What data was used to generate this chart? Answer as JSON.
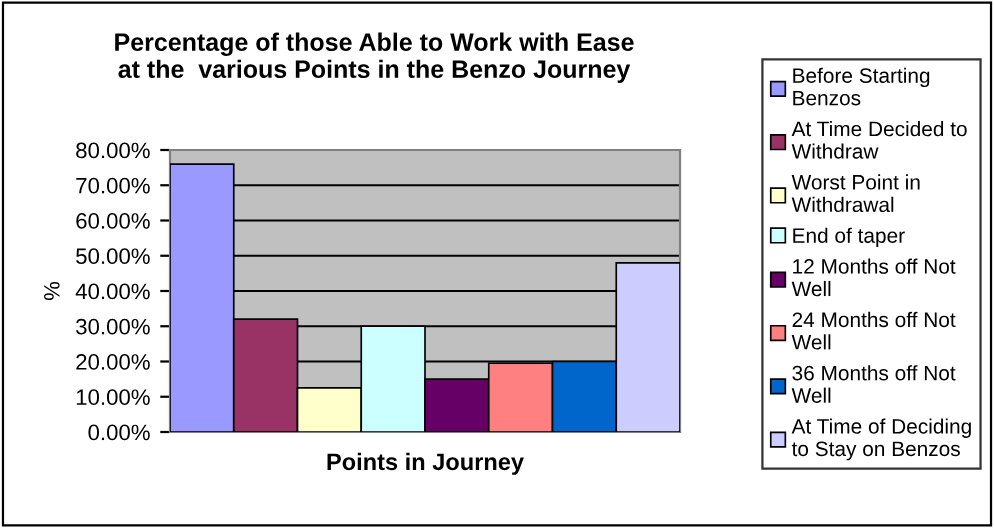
{
  "chart_data": {
    "type": "bar",
    "title": "Percentage of those Able to Work with Ease\nat the  various Points in the Benzo Journey",
    "xlabel": "Points in Journey",
    "ylabel": "%",
    "categories": [
      null
    ],
    "series": [
      {
        "name": "Before Starting Benzos",
        "color": "#9999ff",
        "values": [
          76
        ]
      },
      {
        "name": "At Time Decided to Withdraw",
        "color": "#993366",
        "values": [
          32
        ]
      },
      {
        "name": "Worst Point in Withdrawal",
        "color": "#ffffcc",
        "values": [
          12.5
        ]
      },
      {
        "name": "End of taper",
        "color": "#ccffff",
        "values": [
          30
        ]
      },
      {
        "name": "12 Months off Not Well",
        "color": "#660066",
        "values": [
          15
        ]
      },
      {
        "name": "24 Months off Not Well",
        "color": "#ff8080",
        "values": [
          19.5
        ]
      },
      {
        "name": "36 Months off Not Well",
        "color": "#0066cc",
        "values": [
          20
        ]
      },
      {
        "name": "At Time of Deciding to Stay on Benzos",
        "color": "#ccccff",
        "values": [
          48
        ]
      }
    ],
    "ylim": [
      0,
      80
    ],
    "yticks": [
      {
        "value": 0,
        "label": "0.00%"
      },
      {
        "value": 10,
        "label": "10.00%"
      },
      {
        "value": 20,
        "label": "20.00%"
      },
      {
        "value": 30,
        "label": "30.00%"
      },
      {
        "value": 40,
        "label": "40.00%"
      },
      {
        "value": 50,
        "label": "50.00%"
      },
      {
        "value": 60,
        "label": "60.00%"
      },
      {
        "value": 70,
        "label": "70.00%"
      },
      {
        "value": 80,
        "label": "80.00%"
      }
    ],
    "grid": "y",
    "legend": "right"
  }
}
